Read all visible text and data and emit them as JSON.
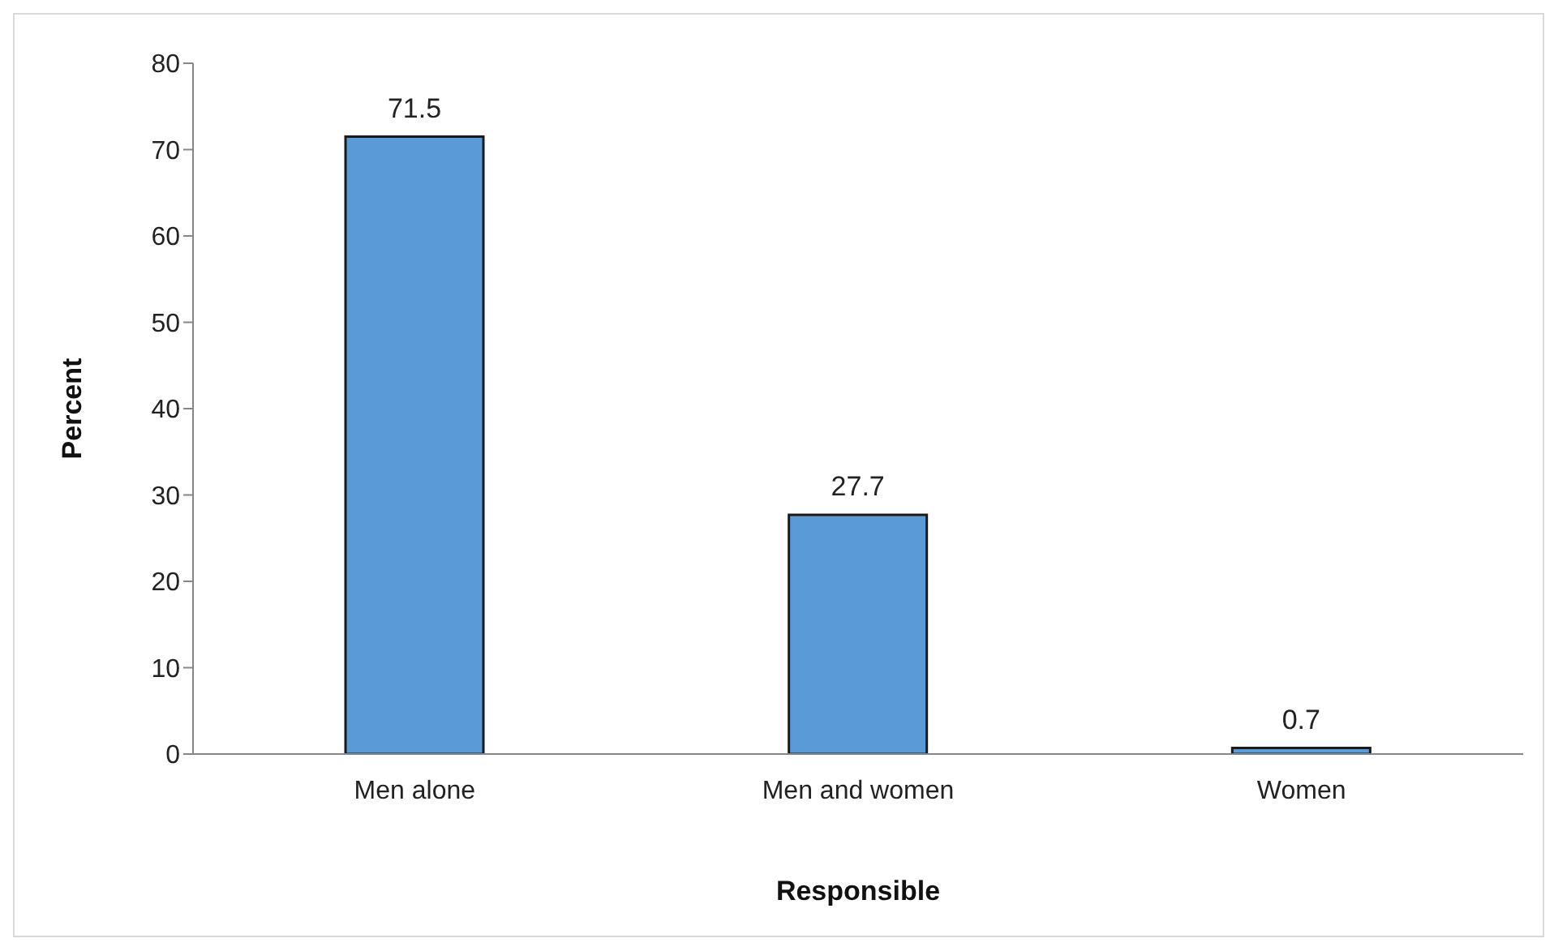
{
  "chart_data": {
    "type": "bar",
    "xlabel": "Responsible",
    "ylabel": "Percent",
    "categories": [
      "Men alone",
      "Men and women",
      "Women"
    ],
    "values": [
      71.5,
      27.7,
      0.7
    ],
    "color": "#5b9bd5",
    "ylim": [
      0,
      80
    ],
    "yticks": [
      0,
      10,
      20,
      30,
      40,
      50,
      60,
      70,
      80
    ],
    "grid": false,
    "data_labels": true
  }
}
